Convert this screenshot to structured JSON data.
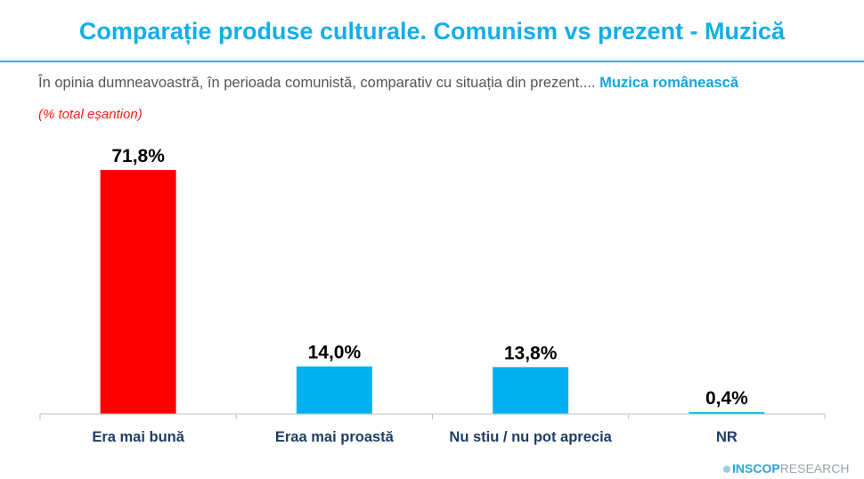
{
  "title": "Comparație produse culturale. Comunism vs prezent - Muzică",
  "question": "În opinia dumneavoastră, în perioada comunistă, comparativ cu situația din prezent....",
  "question_highlight": "Muzica românească",
  "note": "(% total eșantion)",
  "logo": {
    "brand": "INSCOP",
    "suffix": "RESEARCH"
  },
  "chart_data": {
    "type": "bar",
    "categories": [
      "Era mai bună",
      "Eraa mai proastă",
      "Nu stiu / nu pot aprecia",
      "NR"
    ],
    "values": [
      71.8,
      14.0,
      13.8,
      0.4
    ],
    "value_labels": [
      "71,8%",
      "14,0%",
      "13,8%",
      "0,4%"
    ],
    "colors": [
      "#ff0000",
      "#00b0f0",
      "#00b0f0",
      "#00b0f0"
    ],
    "ylim": [
      0,
      80
    ],
    "grid": false,
    "xlabel": "",
    "ylabel": ""
  }
}
